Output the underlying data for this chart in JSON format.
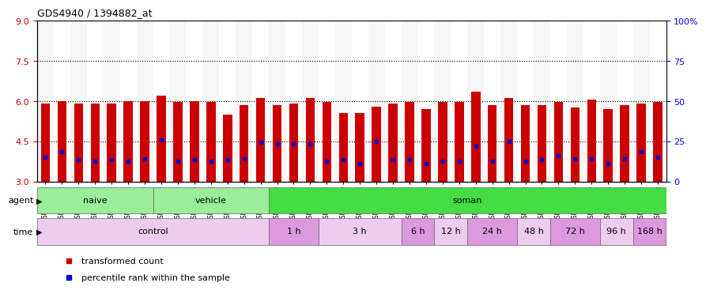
{
  "title": "GDS4940 / 1394882_at",
  "samples": [
    "GSM338857",
    "GSM338858",
    "GSM338859",
    "GSM338862",
    "GSM338864",
    "GSM338877",
    "GSM338880",
    "GSM338860",
    "GSM338861",
    "GSM338863",
    "GSM338865",
    "GSM338866",
    "GSM338867",
    "GSM338868",
    "GSM338869",
    "GSM338870",
    "GSM338871",
    "GSM338872",
    "GSM338873",
    "GSM338874",
    "GSM338875",
    "GSM338876",
    "GSM338878",
    "GSM338879",
    "GSM338881",
    "GSM338882",
    "GSM338883",
    "GSM338884",
    "GSM338885",
    "GSM338886",
    "GSM338887",
    "GSM338888",
    "GSM338889",
    "GSM338890",
    "GSM338891",
    "GSM338892",
    "GSM338893",
    "GSM338894"
  ],
  "bar_top": [
    5.9,
    6.0,
    5.9,
    5.9,
    5.9,
    6.0,
    6.0,
    6.2,
    5.95,
    6.0,
    5.95,
    5.5,
    5.85,
    6.1,
    5.85,
    5.9,
    6.1,
    5.95,
    5.55,
    5.55,
    5.8,
    5.9,
    5.95,
    5.7,
    5.95,
    5.95,
    6.35,
    5.85,
    6.1,
    5.85,
    5.85,
    5.95,
    5.75,
    6.05,
    5.7,
    5.85,
    5.9,
    5.95
  ],
  "blue_marker": [
    3.9,
    4.1,
    3.8,
    3.75,
    3.8,
    3.75,
    3.85,
    4.55,
    3.75,
    3.8,
    3.75,
    3.8,
    3.85,
    4.45,
    4.4,
    4.4,
    4.4,
    3.75,
    3.8,
    3.65,
    4.5,
    3.8,
    3.8,
    3.65,
    3.75,
    3.75,
    4.3,
    3.75,
    4.5,
    3.75,
    3.8,
    3.95,
    3.85,
    3.85,
    3.65,
    3.85,
    4.1,
    3.9
  ],
  "bar_bottom": 3.0,
  "ylim_left": [
    3,
    9
  ],
  "ylim_right": [
    0,
    100
  ],
  "yticks_left": [
    3,
    4.5,
    6,
    7.5,
    9
  ],
  "yticks_right": [
    0,
    25,
    50,
    75,
    100
  ],
  "gridlines": [
    4.5,
    6.0,
    7.5
  ],
  "bar_color": "#cc0000",
  "marker_color": "#0000cc",
  "agent_row": [
    {
      "label": "naive",
      "start": 0,
      "end": 7,
      "color": "#99ee99"
    },
    {
      "label": "vehicle",
      "start": 7,
      "end": 14,
      "color": "#99ee99"
    },
    {
      "label": "soman",
      "start": 14,
      "end": 38,
      "color": "#44dd44"
    }
  ],
  "time_row": [
    {
      "label": "control",
      "start": 0,
      "end": 14,
      "alt": 0
    },
    {
      "label": "1 h",
      "start": 14,
      "end": 17,
      "alt": 1
    },
    {
      "label": "3 h",
      "start": 17,
      "end": 22,
      "alt": 0
    },
    {
      "label": "6 h",
      "start": 22,
      "end": 24,
      "alt": 1
    },
    {
      "label": "12 h",
      "start": 24,
      "end": 26,
      "alt": 0
    },
    {
      "label": "24 h",
      "start": 26,
      "end": 29,
      "alt": 1
    },
    {
      "label": "48 h",
      "start": 29,
      "end": 31,
      "alt": 0
    },
    {
      "label": "72 h",
      "start": 31,
      "end": 34,
      "alt": 1
    },
    {
      "label": "96 h",
      "start": 34,
      "end": 36,
      "alt": 0
    },
    {
      "label": "168 h",
      "start": 36,
      "end": 38,
      "alt": 1
    }
  ],
  "time_color_light": "#eeccee",
  "time_color_dark": "#dd99dd",
  "xticklabel_fontsize": 5.5,
  "bar_width": 0.55,
  "bg_col_even": "#eeeeee",
  "bg_col_odd": "#ffffff"
}
